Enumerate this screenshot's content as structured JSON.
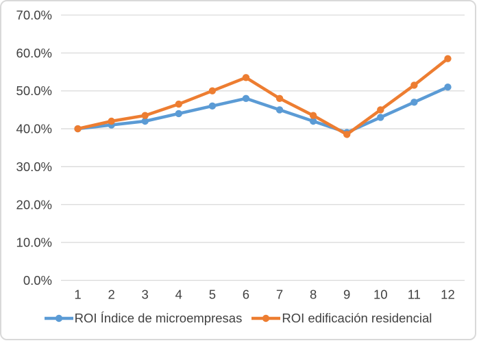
{
  "chart_data": {
    "type": "line",
    "title": "",
    "xlabel": "",
    "ylabel": "",
    "categories": [
      "1",
      "2",
      "3",
      "4",
      "5",
      "6",
      "7",
      "8",
      "9",
      "10",
      "11",
      "12"
    ],
    "series": [
      {
        "name": "ROI Índice de microempresas",
        "color": "#5B9BD5",
        "values": [
          40.0,
          41.0,
          42.0,
          44.0,
          46.0,
          48.0,
          45.0,
          42.0,
          39.0,
          43.0,
          47.0,
          51.0
        ]
      },
      {
        "name": "ROI edificación residencial",
        "color": "#ED7D31",
        "values": [
          40.0,
          42.0,
          43.5,
          46.5,
          50.0,
          53.5,
          48.0,
          43.5,
          38.5,
          45.0,
          51.5,
          58.5
        ]
      }
    ],
    "ylim": [
      0,
      70
    ],
    "ytick_values": [
      70,
      60,
      50,
      40,
      30,
      20,
      10,
      0
    ],
    "ytick_labels": [
      "70.0%",
      "60.0%",
      "50.0%",
      "40.0%",
      "30.0%",
      "20.0%",
      "10.0%",
      "0.0%"
    ],
    "grid": true,
    "legend_position": "bottom"
  },
  "style": {
    "grid_color": "#D9D9D9",
    "axis_text_color": "#404040",
    "background": "#FFFFFF",
    "border_color": "#D9D9D9"
  }
}
